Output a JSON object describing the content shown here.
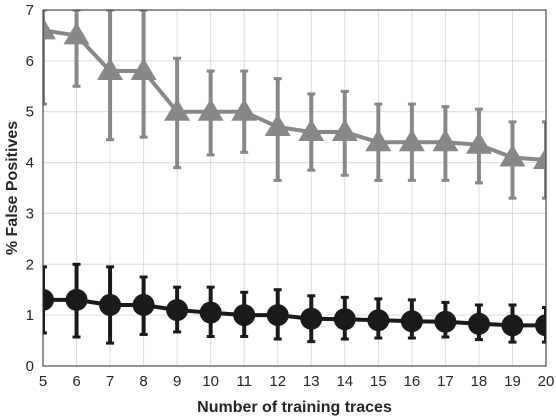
{
  "chart_data": {
    "type": "line",
    "xlabel": "Number of training traces",
    "ylabel": "% False Positives",
    "xlim": [
      5,
      20
    ],
    "ylim": [
      0,
      7
    ],
    "xticks": [
      5,
      6,
      7,
      8,
      9,
      10,
      11,
      12,
      13,
      14,
      15,
      16,
      17,
      18,
      19,
      20
    ],
    "yticks": [
      0,
      1,
      2,
      3,
      4,
      5,
      6,
      7
    ],
    "grid": true,
    "legend": "none",
    "x": [
      5,
      6,
      7,
      8,
      9,
      10,
      11,
      12,
      13,
      14,
      15,
      16,
      17,
      18,
      19,
      20
    ],
    "series": [
      {
        "marker": "triangle",
        "color": "#888888",
        "values": [
          6.6,
          6.5,
          5.8,
          5.8,
          5.0,
          5.0,
          5.0,
          4.7,
          4.6,
          4.6,
          4.4,
          4.4,
          4.4,
          4.35,
          4.1,
          4.05
        ],
        "err_low": [
          5.15,
          5.5,
          4.45,
          4.5,
          3.9,
          4.15,
          4.2,
          3.65,
          3.85,
          3.75,
          3.65,
          3.65,
          3.65,
          3.6,
          3.3,
          3.3
        ],
        "err_high": [
          7.0,
          7.0,
          7.0,
          7.0,
          6.05,
          5.8,
          5.8,
          5.65,
          5.35,
          5.4,
          5.15,
          5.15,
          5.1,
          5.05,
          4.8,
          4.8
        ]
      },
      {
        "marker": "circle",
        "color": "#1a1a1a",
        "values": [
          1.3,
          1.3,
          1.2,
          1.2,
          1.1,
          1.05,
          1.0,
          1.0,
          0.93,
          0.92,
          0.9,
          0.88,
          0.87,
          0.83,
          0.8,
          0.8
        ],
        "err_low": [
          0.65,
          0.57,
          0.45,
          0.62,
          0.67,
          0.58,
          0.58,
          0.53,
          0.48,
          0.53,
          0.55,
          0.55,
          0.57,
          0.52,
          0.47,
          0.47
        ],
        "err_high": [
          1.95,
          2.0,
          1.95,
          1.75,
          1.55,
          1.55,
          1.45,
          1.5,
          1.38,
          1.35,
          1.32,
          1.3,
          1.25,
          1.2,
          1.2,
          1.15
        ]
      }
    ]
  }
}
